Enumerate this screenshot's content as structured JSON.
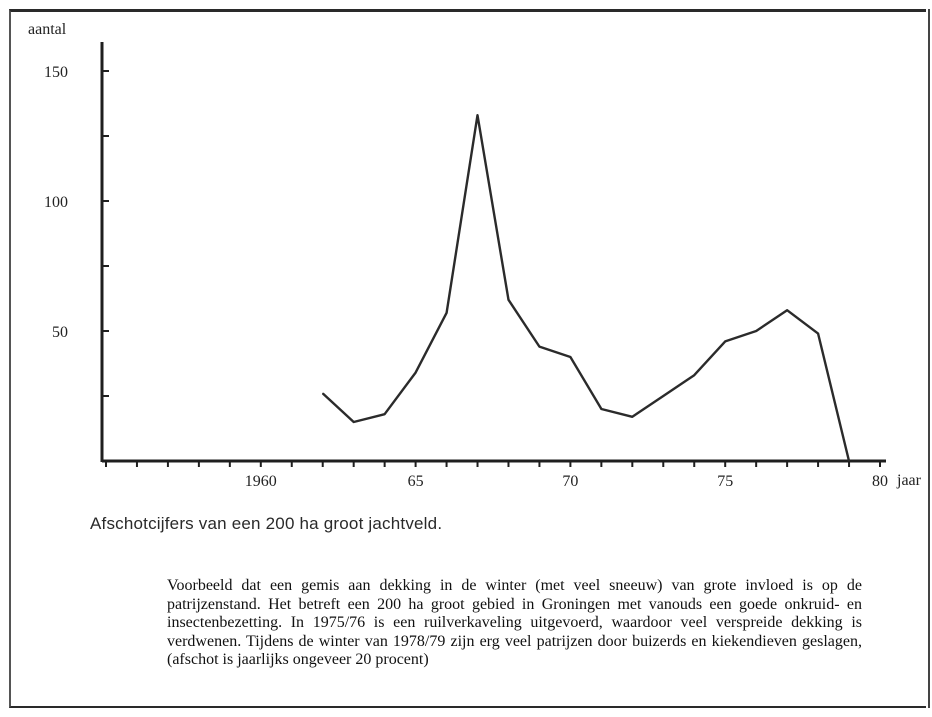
{
  "chart_data": {
    "type": "line",
    "ylabel": "aantal",
    "xlabel": "jaar",
    "xlim": [
      1955,
      1980
    ],
    "ylim": [
      0,
      160
    ],
    "x_ticks": [
      1955,
      1956,
      1957,
      1958,
      1959,
      1960,
      1961,
      1962,
      1963,
      1964,
      1965,
      1966,
      1967,
      1968,
      1969,
      1970,
      1971,
      1972,
      1973,
      1974,
      1975,
      1976,
      1977,
      1978,
      1979,
      1980
    ],
    "x_tick_labels": [
      {
        "value": 1960,
        "label": "1960"
      },
      {
        "value": 1965,
        "label": "65"
      },
      {
        "value": 1970,
        "label": "70"
      },
      {
        "value": 1975,
        "label": "75"
      },
      {
        "value": 1980,
        "label": "80"
      }
    ],
    "y_ticks": [
      25,
      50,
      75,
      100,
      125,
      150
    ],
    "y_tick_labels": [
      {
        "value": 150,
        "label": "150"
      },
      {
        "value": 100,
        "label": "100"
      },
      {
        "value": 50,
        "label": "50"
      }
    ],
    "series": [
      {
        "x": [
          1962,
          1963,
          1964,
          1965,
          1966,
          1967,
          1968,
          1969,
          1970,
          1971,
          1972,
          1973,
          1974,
          1975,
          1976,
          1977,
          1978,
          1979
        ],
        "values": [
          26,
          15,
          18,
          34,
          57,
          133,
          62,
          44,
          40,
          20,
          17,
          25,
          33,
          46,
          50,
          58,
          49,
          0
        ]
      }
    ],
    "grid": false
  },
  "caption": "Afschotcijfers van een 200 ha groot jachtveld.",
  "description": "Voorbeeld dat een gemis aan dekking in de winter (met veel sneeuw) van grote invloed is op de patrijzenstand. Het betreft een 200 ha groot gebied in Groningen met vanouds een goede onkruid- en insectenbezetting. In 1975/76 is een ruilverkaveling uitgevoerd, waardoor veel verspreide dekking is verdwenen. Tijdens de winter van 1978/79 zijn erg veel patrijzen door buizerds en kiekendieven geslagen, (afschot is jaarlijks ongeveer 20 procent)"
}
